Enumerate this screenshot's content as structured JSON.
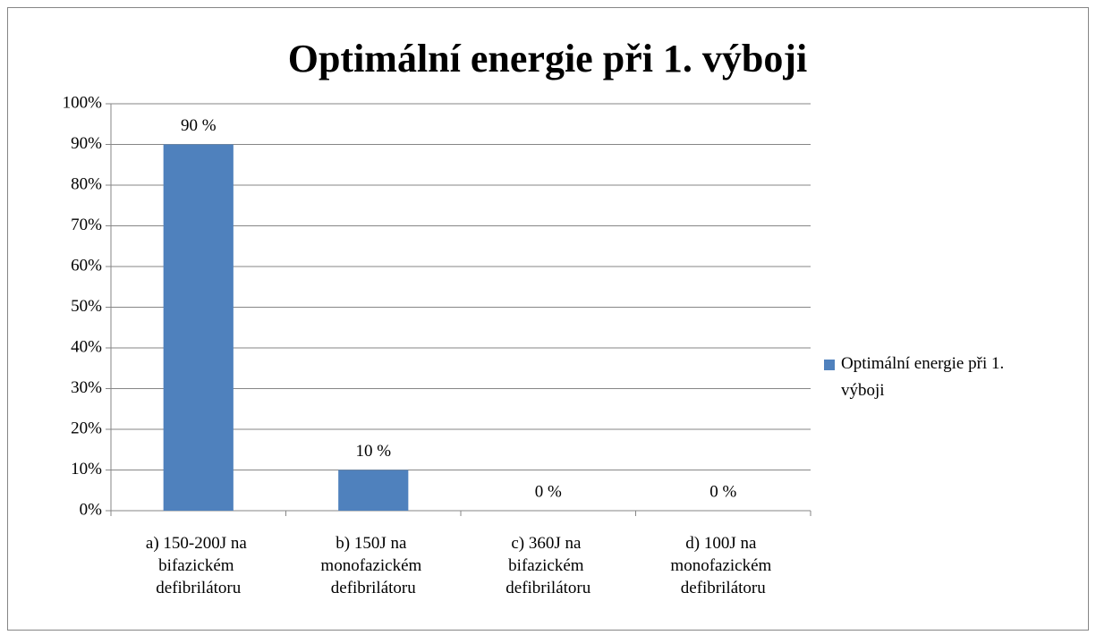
{
  "chart_data": {
    "type": "bar",
    "title": "Optimální energie při 1. výboji",
    "categories": [
      "a) 150-200J na bifazickém defibrilátoru",
      "b) 150J na monofazickém defibrilátoru",
      "c) 360J na bifazickém defibrilátoru",
      "d) 100J na monofazickém defibrilátoru"
    ],
    "series": [
      {
        "name": "Optimální energie při 1. výboji",
        "color": "#4f81bd",
        "values": [
          90,
          10,
          0,
          0
        ],
        "value_labels": [
          "90 %",
          "10 %",
          "0 %",
          "0 %"
        ]
      }
    ],
    "ylim": [
      0,
      100
    ],
    "yticks": [
      {
        "value": 0,
        "label": "0%"
      },
      {
        "value": 10,
        "label": "10%"
      },
      {
        "value": 20,
        "label": "20%"
      },
      {
        "value": 30,
        "label": "30%"
      },
      {
        "value": 40,
        "label": "40%"
      },
      {
        "value": 50,
        "label": "50%"
      },
      {
        "value": 60,
        "label": "60%"
      },
      {
        "value": 70,
        "label": "70%"
      },
      {
        "value": 80,
        "label": "80%"
      },
      {
        "value": 90,
        "label": "90%"
      },
      {
        "value": 100,
        "label": "100%"
      }
    ],
    "grid": true,
    "legend": "right"
  }
}
